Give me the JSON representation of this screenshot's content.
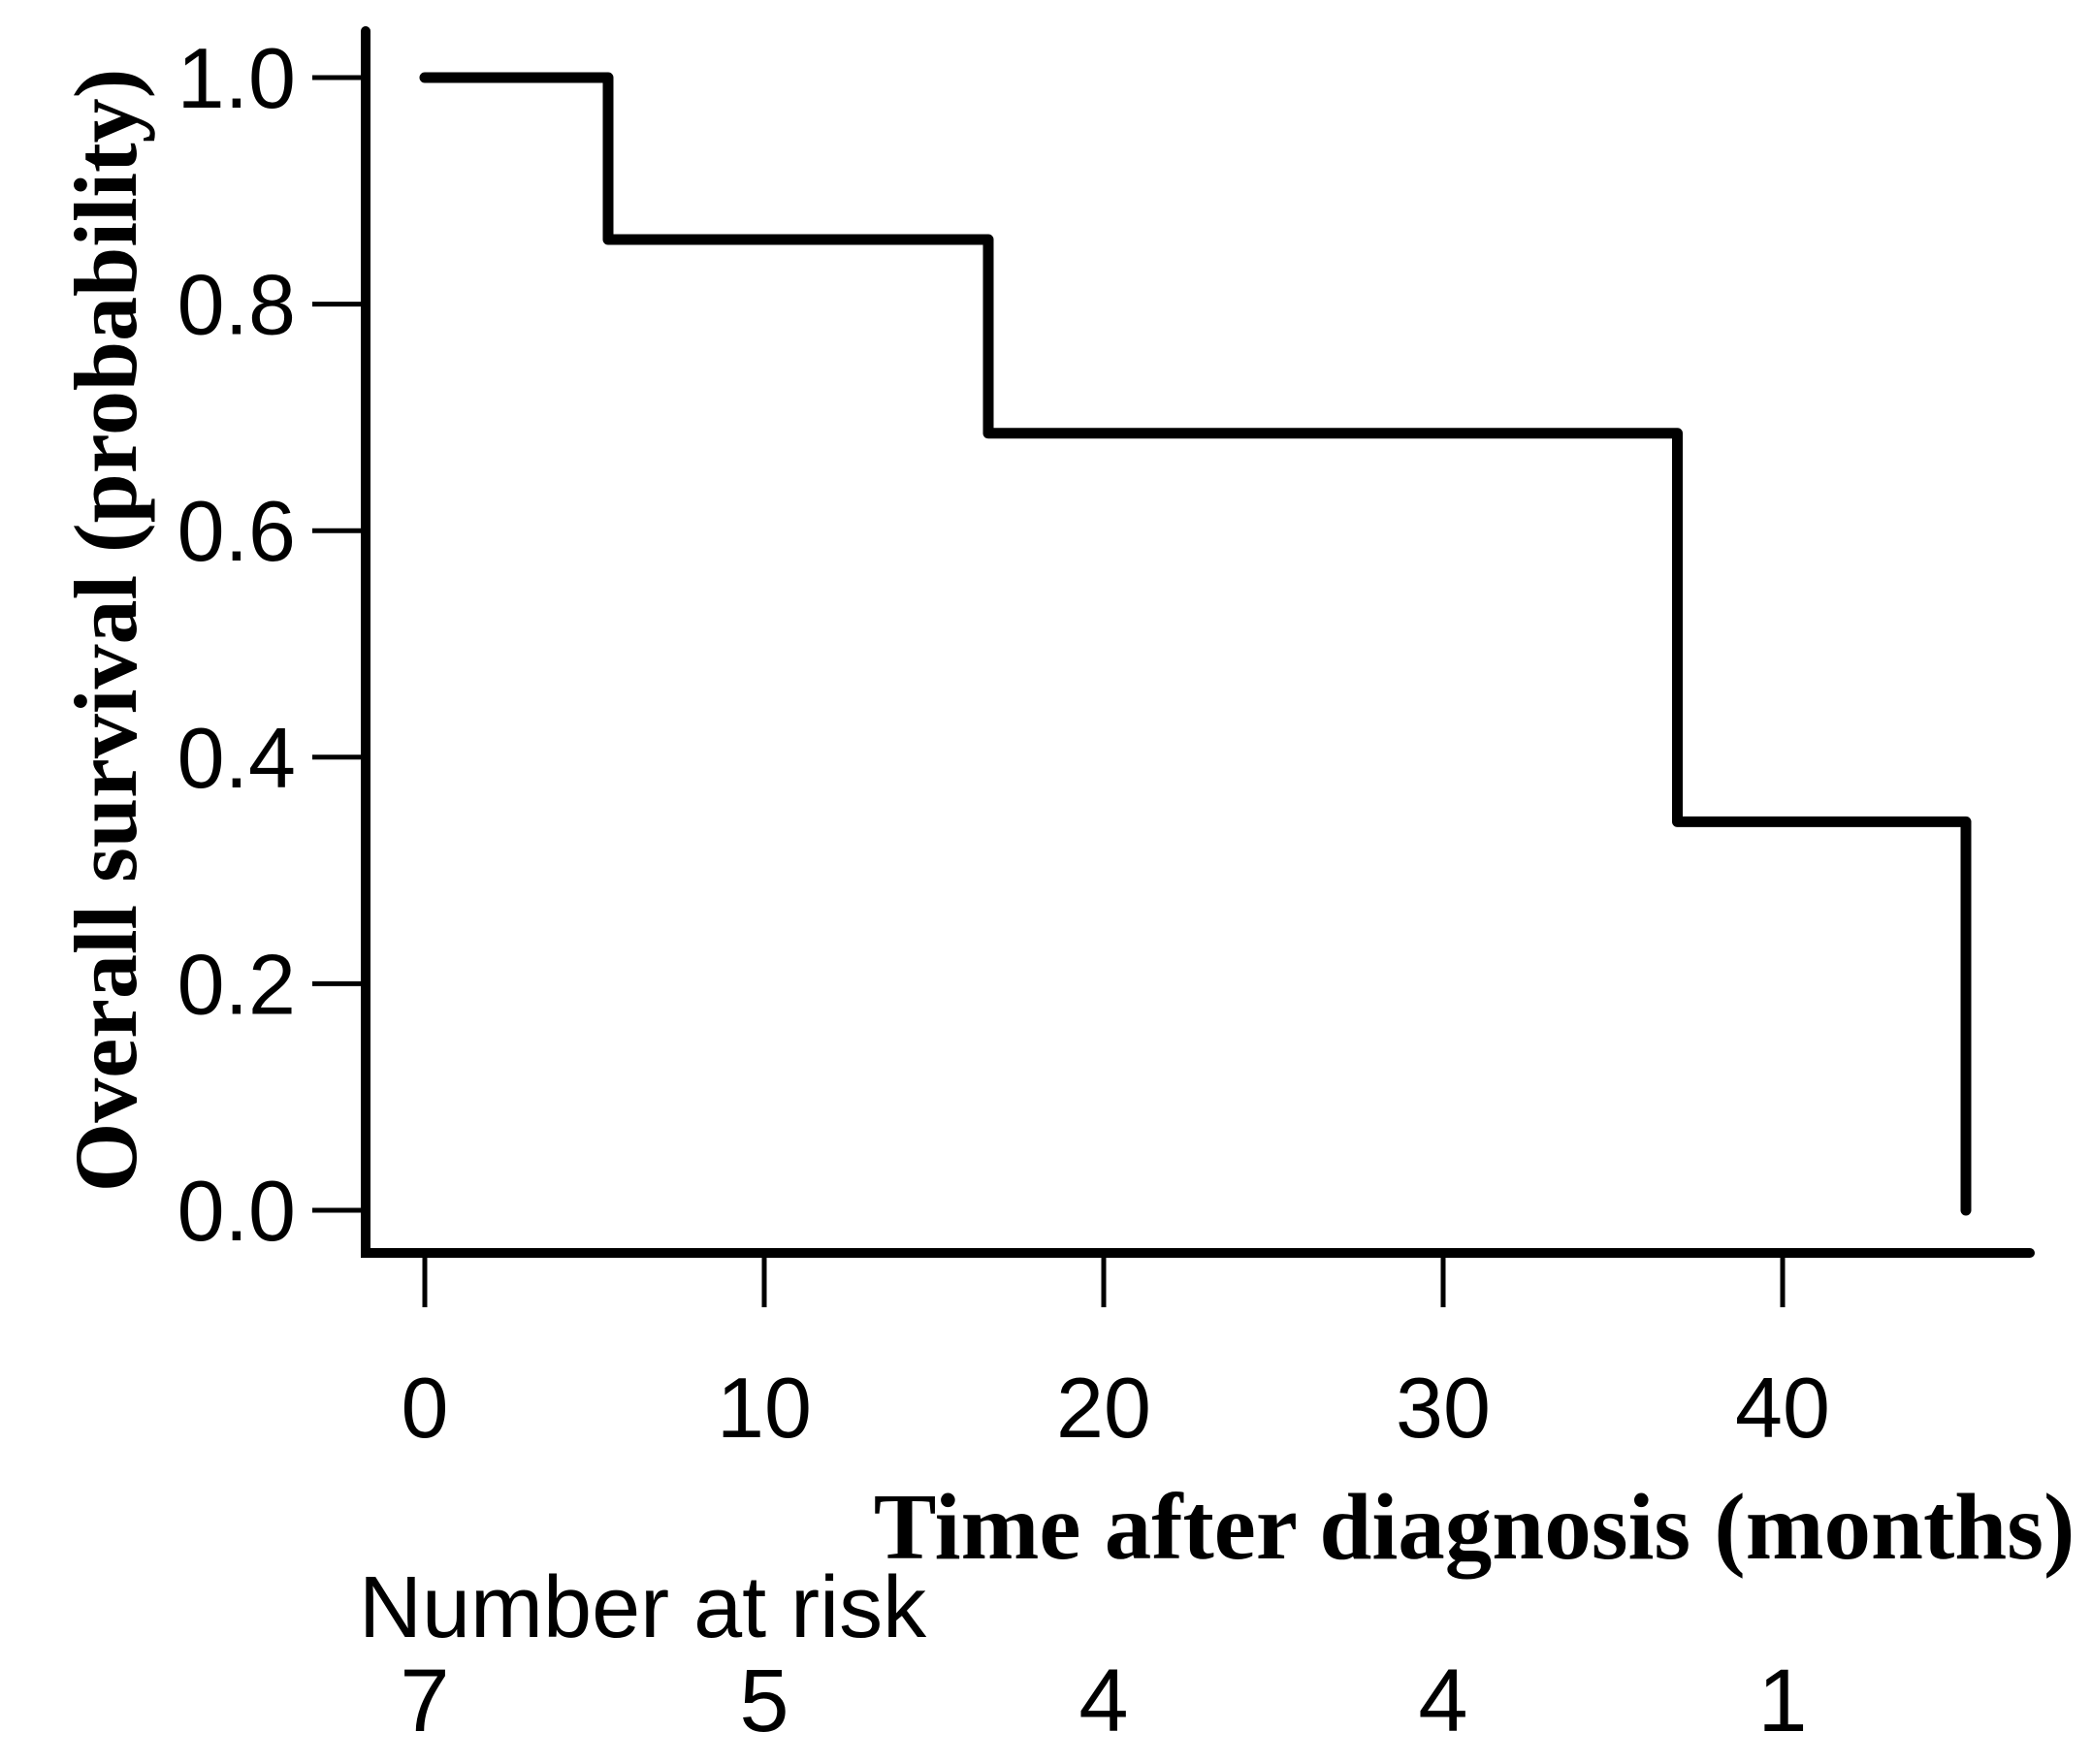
{
  "figure": {
    "background_color": "#ffffff",
    "foreground_color": "#000000"
  },
  "chart_data": {
    "type": "line",
    "subtype": "kaplan_meier_step",
    "title": "",
    "xlabel": "Time after diagnosis (months)",
    "ylabel": "Overall survival (probability)",
    "x_tick_labels": [
      "0",
      "10",
      "20",
      "30",
      "40"
    ],
    "x_tick_values": [
      0,
      10,
      20,
      30,
      40
    ],
    "y_tick_labels": [
      "1.0",
      "0.8",
      "0.6",
      "0.4",
      "0.2",
      "0.0"
    ],
    "y_tick_values": [
      1.0,
      0.8,
      0.6,
      0.4,
      0.2,
      0.0
    ],
    "xlim": [
      0,
      47.3
    ],
    "ylim": [
      0,
      1.0
    ],
    "grid": false,
    "legend": "none",
    "line_color": "#000000",
    "series": [
      {
        "name": "overall-survival",
        "step_points": [
          {
            "time_months": 0,
            "survival": 1.0
          },
          {
            "time_months": 5.4,
            "survival": 1.0
          },
          {
            "time_months": 5.4,
            "survival": 0.857
          },
          {
            "time_months": 16.6,
            "survival": 0.857
          },
          {
            "time_months": 16.6,
            "survival": 0.686
          },
          {
            "time_months": 36.9,
            "survival": 0.686
          },
          {
            "time_months": 36.9,
            "survival": 0.343
          },
          {
            "time_months": 45.4,
            "survival": 0.343
          },
          {
            "time_months": 45.4,
            "survival": 0.0
          }
        ]
      }
    ],
    "number_at_risk": {
      "label": "Number at risk",
      "times": [
        0,
        10,
        20,
        30,
        40
      ],
      "counts": [
        "7",
        "5",
        "4",
        "4",
        "1"
      ]
    }
  }
}
